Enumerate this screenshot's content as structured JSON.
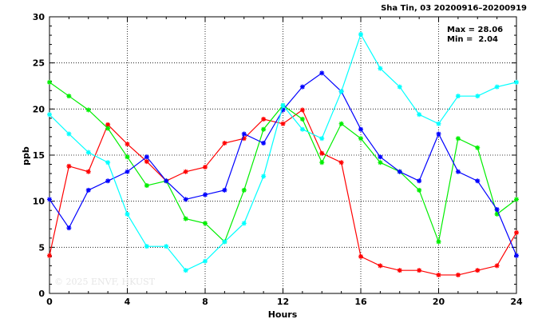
{
  "chart_data": {
    "type": "line",
    "title": "Sha Tin, 03 20200916–20200919",
    "xlabel": "Hours",
    "ylabel": "ppb",
    "xlim": [
      0,
      24
    ],
    "ylim": [
      0,
      30
    ],
    "xticks": [
      0,
      4,
      8,
      12,
      16,
      20,
      24
    ],
    "yticks": [
      0,
      5,
      10,
      15,
      20,
      25,
      30
    ],
    "grid": true,
    "x": [
      0,
      1,
      2,
      3,
      4,
      5,
      6,
      7,
      8,
      9,
      10,
      11,
      12,
      13,
      14,
      15,
      16,
      17,
      18,
      19,
      20,
      21,
      22,
      23,
      24
    ],
    "series": [
      {
        "color": "#ff0000",
        "values": [
          4.1,
          13.8,
          13.2,
          18.3,
          16.2,
          14.3,
          12.2,
          13.2,
          13.7,
          16.3,
          16.8,
          18.9,
          18.4,
          19.9,
          15.2,
          14.2,
          4.0,
          3.0,
          2.5,
          2.5,
          2.0,
          2.0,
          2.5,
          3.0,
          6.6
        ]
      },
      {
        "color": "#00ee00",
        "values": [
          22.9,
          21.4,
          19.9,
          17.9,
          14.8,
          11.7,
          12.2,
          8.1,
          7.6,
          5.6,
          11.2,
          17.8,
          20.4,
          18.9,
          14.2,
          18.4,
          16.8,
          14.2,
          13.2,
          11.2,
          5.6,
          16.8,
          15.8,
          8.6,
          10.2
        ]
      },
      {
        "color": "#0000ff",
        "values": [
          10.2,
          7.1,
          11.2,
          12.2,
          13.2,
          14.8,
          12.2,
          10.2,
          10.7,
          11.2,
          17.3,
          16.3,
          19.9,
          22.4,
          23.9,
          21.9,
          17.8,
          14.8,
          13.2,
          12.2,
          17.3,
          13.2,
          12.2,
          9.1,
          4.1
        ]
      },
      {
        "color": "#00ffff",
        "values": [
          19.4,
          17.3,
          15.3,
          14.2,
          8.6,
          5.1,
          5.1,
          2.5,
          3.5,
          5.6,
          7.6,
          12.7,
          20.4,
          17.8,
          16.8,
          21.9,
          28.1,
          24.4,
          22.4,
          19.4,
          18.4,
          21.4,
          21.4,
          22.4,
          22.9
        ]
      }
    ],
    "stats": {
      "max_label": "Max = 28.06",
      "min_label": "Min =  2.04"
    },
    "watermark": "© 2025  ENVF, HKUST"
  }
}
